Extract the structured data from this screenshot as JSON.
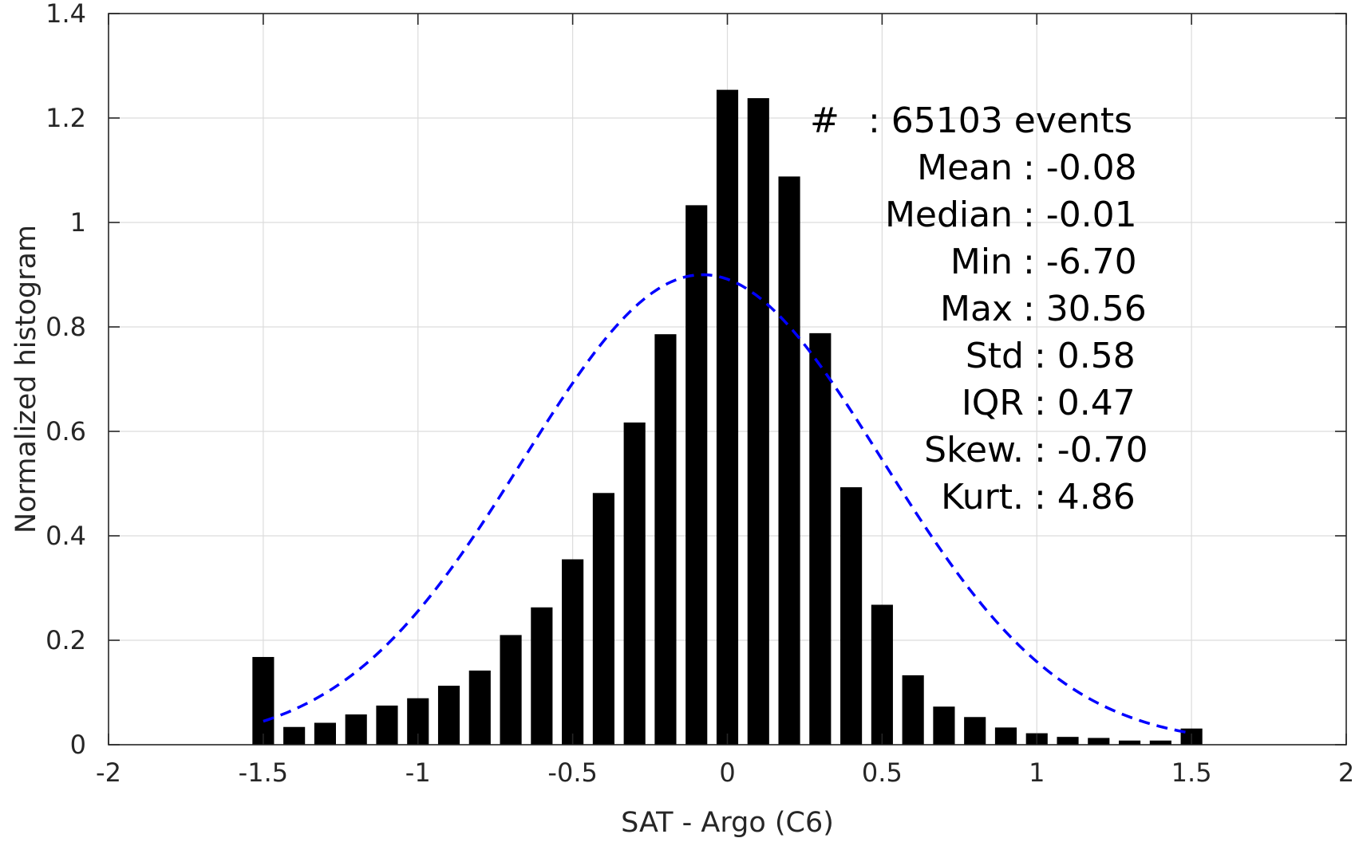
{
  "chart_data": {
    "type": "bar",
    "xlabel": "SAT - Argo (C6)",
    "ylabel": "Normalized histogram",
    "xlim": [
      -2,
      2
    ],
    "ylim": [
      0,
      1.4
    ],
    "xticks": [
      -2,
      -1.5,
      -1,
      -0.5,
      0,
      0.5,
      1,
      1.5,
      2
    ],
    "xtick_labels": [
      "-2",
      "-1.5",
      "-1",
      "-0.5",
      "0",
      "0.5",
      "1",
      "1.5",
      "2"
    ],
    "yticks": [
      0,
      0.2,
      0.4,
      0.6,
      0.8,
      1,
      1.2,
      1.4
    ],
    "ytick_labels": [
      "0",
      "0.2",
      "0.4",
      "0.6",
      "0.8",
      "1",
      "1.2",
      "1.4"
    ],
    "grid": true,
    "bar_width": 0.07,
    "bar_color": "#000000",
    "series": [
      {
        "type": "bar",
        "x": [
          -1.5,
          -1.4,
          -1.3,
          -1.2,
          -1.1,
          -1.0,
          -0.9,
          -0.8,
          -0.7,
          -0.6,
          -0.5,
          -0.4,
          -0.3,
          -0.2,
          -0.1,
          0.0,
          0.1,
          0.2,
          0.3,
          0.4,
          0.5,
          0.6,
          0.7,
          0.8,
          0.9,
          1.0,
          1.1,
          1.2,
          1.3,
          1.4,
          1.5
        ],
        "values": [
          0.168,
          0.034,
          0.042,
          0.058,
          0.075,
          0.089,
          0.113,
          0.142,
          0.21,
          0.263,
          0.355,
          0.482,
          0.617,
          0.786,
          1.033,
          1.254,
          1.238,
          1.088,
          0.788,
          0.493,
          0.268,
          0.133,
          0.073,
          0.053,
          0.033,
          0.022,
          0.015,
          0.013,
          0.008,
          0.008,
          0.031
        ]
      },
      {
        "type": "line",
        "style": "dashed",
        "color": "#0000ff",
        "mean": -0.08,
        "std": 0.58,
        "peak": 0.9,
        "x_range": [
          -1.5,
          1.5
        ]
      }
    ],
    "stats": {
      "label_x": -0.55,
      "lines": [
        {
          "label": "#",
          "value": ": 65103 events",
          "align": "left",
          "pos": -0.45
        },
        {
          "label": "Mean",
          "value": ": -0.08",
          "align": "left",
          "pos": 0.9
        },
        {
          "label": "Median",
          "value": ": -0.01",
          "align": "left",
          "pos": 0.9
        },
        {
          "label": "Min",
          "value": ": -6.70",
          "align": "left",
          "pos": 0.9
        },
        {
          "label": "Max",
          "value": ": 30.56",
          "align": "left",
          "pos": 0.9
        },
        {
          "label": "Std",
          "value": ": 0.58",
          "align": "left",
          "pos": 1.0
        },
        {
          "label": "IQR",
          "value": ": 0.47",
          "align": "left",
          "pos": 1.0
        },
        {
          "label": "Skew.",
          "value": ": -0.70",
          "align": "left",
          "pos": 1.0
        },
        {
          "label": "Kurt.",
          "value": ": 4.86",
          "align": "left",
          "pos": 1.1
        }
      ]
    }
  }
}
